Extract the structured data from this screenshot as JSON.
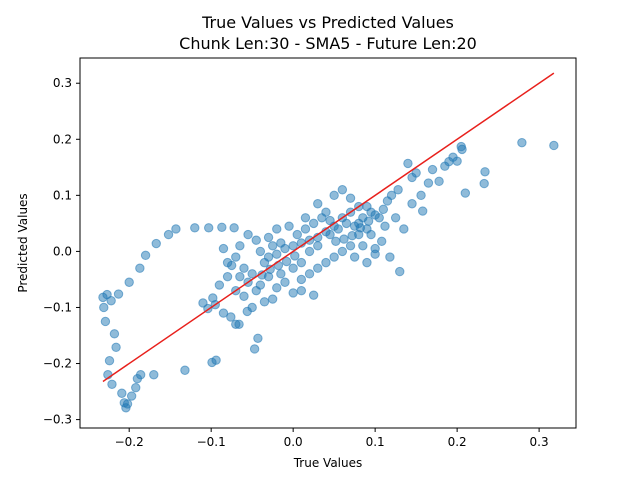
{
  "chart_data": {
    "type": "scatter",
    "title": "True Values vs Predicted Values",
    "subtitle": "Chunk Len:30 - SMA5 - Future Len:20",
    "xlabel": "True Values",
    "ylabel": "Predicted Values",
    "xlim": [
      -0.26,
      0.345
    ],
    "ylim": [
      -0.315,
      0.345
    ],
    "xticks": [
      -0.2,
      -0.1,
      0.0,
      0.1,
      0.2,
      0.3
    ],
    "xtick_labels": [
      "−0.2",
      "−0.1",
      "0.0",
      "0.1",
      "0.2",
      "0.3"
    ],
    "yticks": [
      -0.3,
      -0.2,
      -0.1,
      0.0,
      0.1,
      0.2,
      0.3
    ],
    "ytick_labels": [
      "−0.3",
      "−0.2",
      "−0.1",
      "0.0",
      "0.1",
      "0.2",
      "0.3"
    ],
    "grid": false,
    "legend": null,
    "series": [
      {
        "color": "#1f77b4",
        "alpha": 0.5,
        "points": [
          [
            -0.232,
            -0.082
          ],
          [
            -0.231,
            -0.1
          ],
          [
            -0.229,
            -0.125
          ],
          [
            -0.226,
            -0.22
          ],
          [
            -0.224,
            -0.195
          ],
          [
            -0.221,
            -0.237
          ],
          [
            -0.218,
            -0.147
          ],
          [
            -0.216,
            -0.171
          ],
          [
            -0.213,
            -0.076
          ],
          [
            -0.209,
            -0.253
          ],
          [
            -0.206,
            -0.27
          ],
          [
            -0.204,
            -0.279
          ],
          [
            -0.202,
            -0.272
          ],
          [
            -0.197,
            -0.258
          ],
          [
            -0.192,
            -0.243
          ],
          [
            -0.19,
            -0.227
          ],
          [
            -0.186,
            -0.22
          ],
          [
            -0.17,
            -0.22
          ],
          [
            -0.132,
            -0.212
          ],
          [
            -0.227,
            -0.077
          ],
          [
            -0.222,
            -0.088
          ],
          [
            -0.2,
            -0.055
          ],
          [
            -0.187,
            -0.03
          ],
          [
            -0.18,
            -0.007
          ],
          [
            -0.167,
            0.014
          ],
          [
            -0.152,
            0.03
          ],
          [
            -0.143,
            0.04
          ],
          [
            -0.12,
            0.042
          ],
          [
            -0.103,
            0.042
          ],
          [
            -0.087,
            0.043
          ],
          [
            -0.072,
            0.042
          ],
          [
            -0.099,
            -0.198
          ],
          [
            -0.094,
            -0.194
          ],
          [
            -0.047,
            -0.174
          ],
          [
            -0.043,
            -0.155
          ],
          [
            -0.066,
            -0.13
          ],
          [
            -0.056,
            -0.107
          ],
          [
            -0.076,
            -0.117
          ],
          [
            -0.104,
            -0.102
          ],
          [
            -0.098,
            -0.083
          ],
          [
            0.279,
            0.194
          ],
          [
            0.318,
            0.189
          ],
          [
            0.234,
            0.142
          ],
          [
            0.233,
            0.121
          ],
          [
            0.21,
            0.104
          ],
          [
            0.206,
            0.182
          ],
          [
            0.205,
            0.187
          ],
          [
            0.2,
            0.161
          ],
          [
            0.195,
            0.168
          ],
          [
            0.19,
            0.16
          ],
          [
            0.185,
            0.152
          ],
          [
            0.178,
            0.125
          ],
          [
            0.17,
            0.146
          ],
          [
            0.165,
            0.122
          ],
          [
            0.158,
            0.072
          ],
          [
            0.156,
            0.1
          ],
          [
            0.15,
            0.14
          ],
          [
            0.145,
            0.132
          ],
          [
            0.14,
            0.157
          ],
          [
            0.128,
            0.11
          ],
          [
            0.12,
            0.1
          ],
          [
            0.115,
            0.09
          ],
          [
            0.13,
            -0.036
          ],
          [
            0.118,
            -0.01
          ],
          [
            0.108,
            0.018
          ],
          [
            0.1,
            0.005
          ],
          [
            0.09,
            -0.02
          ],
          [
            0.08,
            0.08
          ],
          [
            0.07,
            0.095
          ],
          [
            0.06,
            0.11
          ],
          [
            0.05,
            0.1
          ],
          [
            0.025,
            -0.078
          ],
          [
            0.01,
            -0.07
          ],
          [
            0.0,
            -0.074
          ],
          [
            -0.02,
            -0.065
          ],
          [
            0.1,
            -0.005
          ],
          [
            0.11,
            0.075
          ],
          [
            0.125,
            0.06
          ],
          [
            0.135,
            0.04
          ],
          [
            0.145,
            0.085
          ],
          [
            -0.09,
            -0.06
          ],
          [
            -0.08,
            -0.045
          ],
          [
            -0.07,
            -0.07
          ],
          [
            -0.06,
            -0.08
          ],
          [
            -0.075,
            -0.025
          ],
          [
            -0.085,
            0.005
          ],
          [
            -0.065,
            0.01
          ],
          [
            -0.055,
            0.03
          ],
          [
            -0.045,
            0.02
          ],
          [
            -0.03,
            0.025
          ],
          [
            -0.02,
            0.04
          ],
          [
            -0.005,
            0.045
          ],
          [
            0.015,
            0.06
          ],
          [
            0.03,
            0.085
          ],
          [
            0.04,
            0.07
          ],
          [
            -0.11,
            -0.092
          ],
          [
            -0.095,
            -0.095
          ],
          [
            -0.085,
            -0.11
          ],
          [
            -0.07,
            -0.13
          ],
          [
            -0.05,
            -0.1
          ],
          [
            -0.035,
            -0.09
          ],
          [
            -0.025,
            -0.085
          ],
          [
            -0.04,
            -0.06
          ],
          [
            -0.03,
            -0.045
          ],
          [
            -0.015,
            -0.04
          ],
          [
            0.0,
            -0.03
          ],
          [
            0.01,
            -0.02
          ],
          [
            0.02,
            0.0
          ],
          [
            0.03,
            0.01
          ],
          [
            0.045,
            0.03
          ],
          [
            0.055,
            0.04
          ],
          [
            0.065,
            0.05
          ],
          [
            0.075,
            0.045
          ],
          [
            0.085,
            0.06
          ],
          [
            0.095,
            0.07
          ],
          [
            0.06,
            0.0
          ],
          [
            0.07,
            0.01
          ],
          [
            0.08,
            0.03
          ],
          [
            0.09,
            0.04
          ],
          [
            0.05,
            -0.01
          ],
          [
            0.04,
            -0.02
          ],
          [
            0.03,
            -0.03
          ],
          [
            0.02,
            -0.04
          ],
          [
            0.01,
            -0.05
          ],
          [
            -0.01,
            -0.055
          ],
          [
            -0.04,
            0.0
          ],
          [
            -0.03,
            -0.01
          ],
          [
            -0.02,
            -0.005
          ],
          [
            -0.01,
            0.005
          ],
          [
            0.0,
            0.01
          ],
          [
            0.01,
            0.015
          ],
          [
            0.02,
            0.02
          ],
          [
            0.03,
            0.025
          ],
          [
            0.04,
            0.035
          ],
          [
            0.05,
            0.045
          ],
          [
            0.105,
            0.06
          ],
          [
            0.095,
            0.03
          ],
          [
            0.085,
            0.01
          ],
          [
            0.075,
            -0.01
          ],
          [
            0.112,
            0.045
          ],
          [
            -0.05,
            -0.04
          ],
          [
            -0.06,
            -0.03
          ],
          [
            -0.07,
            -0.01
          ],
          [
            -0.08,
            -0.02
          ],
          [
            -0.045,
            -0.07
          ],
          [
            0.005,
            0.03
          ],
          [
            0.015,
            0.04
          ],
          [
            0.025,
            0.05
          ],
          [
            0.035,
            0.06
          ],
          [
            0.045,
            0.055
          ],
          [
            -0.015,
            0.015
          ],
          [
            -0.025,
            0.01
          ],
          [
            -0.035,
            -0.02
          ],
          [
            -0.055,
            -0.055
          ],
          [
            -0.065,
            -0.045
          ],
          [
            0.06,
            0.06
          ],
          [
            0.07,
            0.07
          ],
          [
            0.08,
            0.05
          ],
          [
            0.09,
            0.08
          ],
          [
            0.1,
            0.065
          ],
          [
            0.062,
            0.022
          ],
          [
            0.072,
            0.028
          ],
          [
            0.082,
            0.042
          ],
          [
            0.092,
            0.054
          ],
          [
            0.052,
            0.018
          ],
          [
            -0.008,
            -0.018
          ],
          [
            -0.018,
            -0.025
          ],
          [
            -0.028,
            -0.032
          ],
          [
            -0.038,
            -0.042
          ],
          [
            0.002,
            -0.008
          ]
        ]
      }
    ],
    "reference_line": {
      "color": "#e8201c",
      "points": [
        [
          -0.232,
          -0.232
        ],
        [
          0.318,
          0.318
        ]
      ]
    }
  }
}
